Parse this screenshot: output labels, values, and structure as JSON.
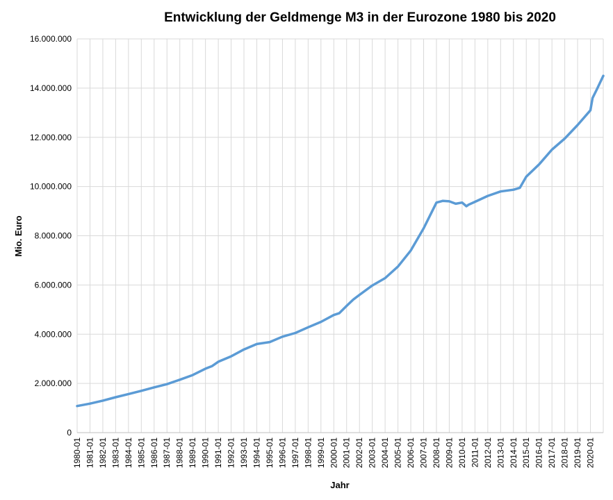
{
  "chart_data": {
    "type": "line",
    "title": "Entwicklung der Geldmenge M3 in der Eurozone 1980 bis 2020",
    "xlabel": "Jahr",
    "ylabel": "Mio. Euro",
    "ylim": [
      0,
      16000000
    ],
    "grid": true,
    "legend": "none",
    "line_color": "#5b9bd5",
    "y_ticks": [
      "0",
      "2.000.000",
      "4.000.000",
      "6.000.000",
      "8.000.000",
      "10.000.000",
      "12.000.000",
      "14.000.000",
      "16.000.000"
    ],
    "y_tick_values": [
      0,
      2000000,
      4000000,
      6000000,
      8000000,
      10000000,
      12000000,
      14000000,
      16000000
    ],
    "x_ticks": [
      "1980-01",
      "1981-01",
      "1982-01",
      "1983-01",
      "1984-01",
      "1985-01",
      "1986-01",
      "1987-01",
      "1988-01",
      "1989-01",
      "1990-01",
      "1991-01",
      "1992-01",
      "1993-01",
      "1994-01",
      "1995-01",
      "1996-01",
      "1997-01",
      "1998-01",
      "1999-01",
      "2000-01",
      "2001-01",
      "2002-01",
      "2003-01",
      "2004-01",
      "2005-01",
      "2006-01",
      "2007-01",
      "2008-01",
      "2009-01",
      "2010-01",
      "2011-01",
      "2012-01",
      "2013-01",
      "2014-01",
      "2015-01",
      "2016-01",
      "2017-01",
      "2018-01",
      "2019-01",
      "2020-01"
    ],
    "x_range": [
      "1980-01",
      "2021-01"
    ],
    "series": [
      {
        "x": [
          "1980-01",
          "1981-01",
          "1982-01",
          "1983-01",
          "1984-01",
          "1985-01",
          "1986-01",
          "1987-01",
          "1988-01",
          "1989-01",
          "1990-01",
          "1990-07",
          "1991-01",
          "1992-01",
          "1993-01",
          "1994-01",
          "1995-01",
          "1996-01",
          "1997-01",
          "1998-01",
          "1999-01",
          "2000-01",
          "2000-06",
          "2001-01",
          "2001-07",
          "2002-01",
          "2003-01",
          "2004-01",
          "2005-01",
          "2006-01",
          "2007-01",
          "2008-01",
          "2008-07",
          "2009-01",
          "2009-07",
          "2010-01",
          "2010-05",
          "2010-07",
          "2011-01",
          "2012-01",
          "2013-01",
          "2014-01",
          "2014-07",
          "2015-01",
          "2016-01",
          "2017-01",
          "2018-01",
          "2019-01",
          "2020-01",
          "2020-03",
          "2020-07",
          "2021-01"
        ],
        "values": [
          1080000,
          1180000,
          1300000,
          1440000,
          1570000,
          1700000,
          1840000,
          1970000,
          2150000,
          2340000,
          2600000,
          2700000,
          2880000,
          3100000,
          3380000,
          3600000,
          3680000,
          3900000,
          4050000,
          4280000,
          4500000,
          4780000,
          4850000,
          5150000,
          5400000,
          5600000,
          5980000,
          6280000,
          6750000,
          7400000,
          8300000,
          9350000,
          9420000,
          9400000,
          9300000,
          9350000,
          9200000,
          9260000,
          9380000,
          9620000,
          9800000,
          9870000,
          9950000,
          10400000,
          10900000,
          11500000,
          11950000,
          12500000,
          13100000,
          13600000,
          13950000,
          14500000
        ]
      }
    ]
  }
}
